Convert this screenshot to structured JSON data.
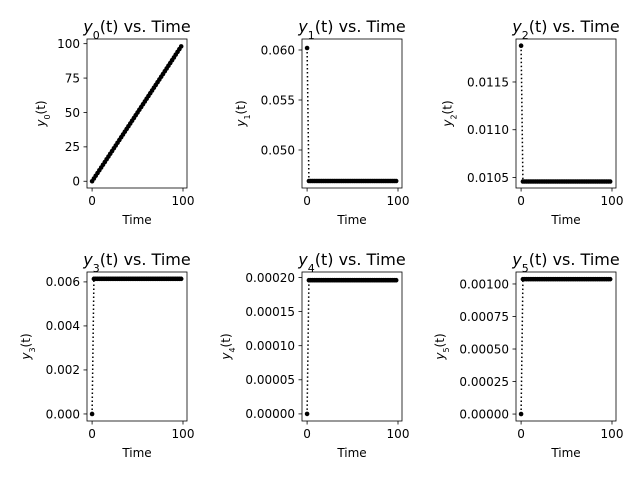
{
  "chart_data": [
    {
      "type": "line",
      "title": {
        "main": "y",
        "sub": "0",
        "rest": "(t) vs. Time"
      },
      "xlabel": "Time",
      "ylabel": {
        "main": "y",
        "sub": "0",
        "rest": "(t)"
      },
      "xlim": [
        -5.6,
        104.4
      ],
      "ylim": [
        -4.9,
        103.4
      ],
      "xticks": [
        0,
        100
      ],
      "xtick_labels": [
        "0",
        "100"
      ],
      "yticks": [
        0,
        25,
        50,
        75,
        100
      ],
      "ytick_labels": [
        "0",
        "25",
        "50",
        "75",
        "100"
      ],
      "x": [
        0,
        2,
        4,
        6,
        8,
        10,
        12,
        14,
        16,
        18,
        20,
        22,
        24,
        26,
        28,
        30,
        32,
        34,
        36,
        38,
        40,
        42,
        44,
        46,
        48,
        50,
        52,
        54,
        56,
        58,
        60,
        62,
        64,
        66,
        68,
        70,
        72,
        74,
        76,
        78,
        80,
        82,
        84,
        86,
        88,
        90,
        92,
        94,
        96,
        98
      ],
      "y": [
        0,
        2,
        4,
        6,
        8,
        10,
        12,
        14,
        16,
        18,
        20,
        22,
        24,
        26,
        28,
        30,
        32,
        34,
        36,
        38,
        40,
        42,
        44,
        46,
        48,
        50,
        52,
        54,
        56,
        58,
        60,
        62,
        64,
        66,
        68,
        70,
        72,
        74,
        76,
        78,
        80,
        82,
        84,
        86,
        88,
        90,
        92,
        94,
        96,
        98
      ],
      "grid": false,
      "marker": "dot",
      "line_style": "dotted",
      "color": "#000000"
    },
    {
      "type": "line",
      "title": {
        "main": "y",
        "sub": "1",
        "rest": "(t) vs. Time"
      },
      "xlabel": "Time",
      "ylabel": {
        "main": "y",
        "sub": "1",
        "rest": "(t)"
      },
      "xlim": [
        -5.6,
        104.4
      ],
      "ylim": [
        0.0462,
        0.0611
      ],
      "xticks": [
        0,
        100
      ],
      "xtick_labels": [
        "0",
        "100"
      ],
      "yticks": [
        0.05,
        0.055,
        0.06
      ],
      "ytick_labels": [
        "0.050",
        "0.055",
        "0.060"
      ],
      "x": [
        0,
        2,
        4,
        6,
        8,
        10,
        12,
        14,
        16,
        18,
        20,
        22,
        24,
        26,
        28,
        30,
        32,
        34,
        36,
        38,
        40,
        42,
        44,
        46,
        48,
        50,
        52,
        54,
        56,
        58,
        60,
        62,
        64,
        66,
        68,
        70,
        72,
        74,
        76,
        78,
        80,
        82,
        84,
        86,
        88,
        90,
        92,
        94,
        96,
        98
      ],
      "y": [
        0.0602,
        0.0469,
        0.0469,
        0.0469,
        0.0469,
        0.0469,
        0.0469,
        0.0469,
        0.0469,
        0.0469,
        0.0469,
        0.0469,
        0.0469,
        0.0469,
        0.0469,
        0.0469,
        0.0469,
        0.0469,
        0.0469,
        0.0469,
        0.0469,
        0.0469,
        0.0469,
        0.0469,
        0.0469,
        0.0469,
        0.0469,
        0.0469,
        0.0469,
        0.0469,
        0.0469,
        0.0469,
        0.0469,
        0.0469,
        0.0469,
        0.0469,
        0.0469,
        0.0469,
        0.0469,
        0.0469,
        0.0469,
        0.0469,
        0.0469,
        0.0469,
        0.0469,
        0.0469,
        0.0469,
        0.0469,
        0.0469,
        0.0469
      ],
      "grid": false,
      "marker": "dot",
      "line_style": "dotted",
      "color": "#000000"
    },
    {
      "type": "line",
      "title": {
        "main": "y",
        "sub": "2",
        "rest": "(t) vs. Time"
      },
      "xlabel": "Time",
      "ylabel": {
        "main": "y",
        "sub": "2",
        "rest": "(t)"
      },
      "xlim": [
        -5.6,
        104.4
      ],
      "ylim": [
        0.01039,
        0.01195
      ],
      "xticks": [
        0,
        100
      ],
      "xtick_labels": [
        "0",
        "100"
      ],
      "yticks": [
        0.0105,
        0.011,
        0.0115
      ],
      "ytick_labels": [
        "0.0105",
        "0.0110",
        "0.0115"
      ],
      "x": [
        0,
        2,
        4,
        6,
        8,
        10,
        12,
        14,
        16,
        18,
        20,
        22,
        24,
        26,
        28,
        30,
        32,
        34,
        36,
        38,
        40,
        42,
        44,
        46,
        48,
        50,
        52,
        54,
        56,
        58,
        60,
        62,
        64,
        66,
        68,
        70,
        72,
        74,
        76,
        78,
        80,
        82,
        84,
        86,
        88,
        90,
        92,
        94,
        96,
        98
      ],
      "y": [
        0.01188,
        0.010458,
        0.010458,
        0.010458,
        0.010458,
        0.010458,
        0.010458,
        0.010458,
        0.010458,
        0.010458,
        0.010458,
        0.010458,
        0.010458,
        0.010458,
        0.010458,
        0.010458,
        0.010458,
        0.010458,
        0.010458,
        0.010458,
        0.010458,
        0.010458,
        0.010458,
        0.010458,
        0.010458,
        0.010458,
        0.010458,
        0.010458,
        0.010458,
        0.010458,
        0.010458,
        0.010458,
        0.010458,
        0.010458,
        0.010458,
        0.010458,
        0.010458,
        0.010458,
        0.010458,
        0.010458,
        0.010458,
        0.010458,
        0.010458,
        0.010458,
        0.010458,
        0.010458,
        0.010458,
        0.010458,
        0.010458,
        0.010458
      ],
      "grid": false,
      "marker": "dot",
      "line_style": "dotted",
      "color": "#000000"
    },
    {
      "type": "line",
      "title": {
        "main": "y",
        "sub": "3",
        "rest": "(t) vs. Time"
      },
      "xlabel": "Time",
      "ylabel": {
        "main": "y",
        "sub": "3",
        "rest": "(t)"
      },
      "xlim": [
        -5.6,
        104.4
      ],
      "ylim": [
        -0.00032,
        0.00645
      ],
      "xticks": [
        0,
        100
      ],
      "xtick_labels": [
        "0",
        "100"
      ],
      "yticks": [
        0,
        0.002,
        0.004,
        0.006
      ],
      "ytick_labels": [
        "0.000",
        "0.002",
        "0.004",
        "0.006"
      ],
      "x": [
        0,
        2,
        4,
        6,
        8,
        10,
        12,
        14,
        16,
        18,
        20,
        22,
        24,
        26,
        28,
        30,
        32,
        34,
        36,
        38,
        40,
        42,
        44,
        46,
        48,
        50,
        52,
        54,
        56,
        58,
        60,
        62,
        64,
        66,
        68,
        70,
        72,
        74,
        76,
        78,
        80,
        82,
        84,
        86,
        88,
        90,
        92,
        94,
        96,
        98
      ],
      "y": [
        0,
        0.00614,
        0.00614,
        0.00614,
        0.00614,
        0.00614,
        0.00614,
        0.00614,
        0.00614,
        0.00614,
        0.00614,
        0.00614,
        0.00614,
        0.00614,
        0.00614,
        0.00614,
        0.00614,
        0.00614,
        0.00614,
        0.00614,
        0.00614,
        0.00614,
        0.00614,
        0.00614,
        0.00614,
        0.00614,
        0.00614,
        0.00614,
        0.00614,
        0.00614,
        0.00614,
        0.00614,
        0.00614,
        0.00614,
        0.00614,
        0.00614,
        0.00614,
        0.00614,
        0.00614,
        0.00614,
        0.00614,
        0.00614,
        0.00614,
        0.00614,
        0.00614,
        0.00614,
        0.00614,
        0.00614,
        0.00614,
        0.00614
      ],
      "grid": false,
      "marker": "dot",
      "line_style": "dotted",
      "color": "#000000"
    },
    {
      "type": "line",
      "title": {
        "main": "y",
        "sub": "4",
        "rest": "(t) vs. Time"
      },
      "xlabel": "Time",
      "ylabel": {
        "main": "y",
        "sub": "4",
        "rest": "(t)"
      },
      "xlim": [
        -5.6,
        104.4
      ],
      "ylim": [
        -1.04e-05,
        0.000208
      ],
      "xticks": [
        0,
        100
      ],
      "xtick_labels": [
        "0",
        "100"
      ],
      "yticks": [
        0,
        5e-05,
        0.0001,
        0.00015,
        0.0002
      ],
      "ytick_labels": [
        "0.00000",
        "0.00005",
        "0.00010",
        "0.00015",
        "0.00020"
      ],
      "x": [
        0,
        2,
        4,
        6,
        8,
        10,
        12,
        14,
        16,
        18,
        20,
        22,
        24,
        26,
        28,
        30,
        32,
        34,
        36,
        38,
        40,
        42,
        44,
        46,
        48,
        50,
        52,
        54,
        56,
        58,
        60,
        62,
        64,
        66,
        68,
        70,
        72,
        74,
        76,
        78,
        80,
        82,
        84,
        86,
        88,
        90,
        92,
        94,
        96,
        98
      ],
      "y": [
        0,
        0.000196,
        0.000196,
        0.000196,
        0.000196,
        0.000196,
        0.000196,
        0.000196,
        0.000196,
        0.000196,
        0.000196,
        0.000196,
        0.000196,
        0.000196,
        0.000196,
        0.000196,
        0.000196,
        0.000196,
        0.000196,
        0.000196,
        0.000196,
        0.000196,
        0.000196,
        0.000196,
        0.000196,
        0.000196,
        0.000196,
        0.000196,
        0.000196,
        0.000196,
        0.000196,
        0.000196,
        0.000196,
        0.000196,
        0.000196,
        0.000196,
        0.000196,
        0.000196,
        0.000196,
        0.000196,
        0.000196,
        0.000196,
        0.000196,
        0.000196,
        0.000196,
        0.000196,
        0.000196,
        0.000196,
        0.000196,
        0.000196
      ],
      "grid": false,
      "marker": "dot",
      "line_style": "dotted",
      "color": "#000000"
    },
    {
      "type": "line",
      "title": {
        "main": "y",
        "sub": "5",
        "rest": "(t) vs. Time"
      },
      "xlabel": "Time",
      "ylabel": {
        "main": "y",
        "sub": "5",
        "rest": "(t)"
      },
      "xlim": [
        -5.6,
        104.4
      ],
      "ylim": [
        -5.34e-05,
        0.001092
      ],
      "xticks": [
        0,
        100
      ],
      "xtick_labels": [
        "0",
        "100"
      ],
      "yticks": [
        0,
        0.00025,
        0.0005,
        0.00075,
        0.001
      ],
      "ytick_labels": [
        "0.00000",
        "0.00025",
        "0.00050",
        "0.00075",
        "0.00100"
      ],
      "x": [
        0,
        2,
        4,
        6,
        8,
        10,
        12,
        14,
        16,
        18,
        20,
        22,
        24,
        26,
        28,
        30,
        32,
        34,
        36,
        38,
        40,
        42,
        44,
        46,
        48,
        50,
        52,
        54,
        56,
        58,
        60,
        62,
        64,
        66,
        68,
        70,
        72,
        74,
        76,
        78,
        80,
        82,
        84,
        86,
        88,
        90,
        92,
        94,
        96,
        98
      ],
      "y": [
        0,
        0.001037,
        0.001037,
        0.001037,
        0.001037,
        0.001037,
        0.001037,
        0.001037,
        0.001037,
        0.001037,
        0.001037,
        0.001037,
        0.001037,
        0.001037,
        0.001037,
        0.001037,
        0.001037,
        0.001037,
        0.001037,
        0.001037,
        0.001037,
        0.001037,
        0.001037,
        0.001037,
        0.001037,
        0.001037,
        0.001037,
        0.001037,
        0.001037,
        0.001037,
        0.001037,
        0.001037,
        0.001037,
        0.001037,
        0.001037,
        0.001037,
        0.001037,
        0.001037,
        0.001037,
        0.001037,
        0.001037,
        0.001037,
        0.001037,
        0.001037,
        0.001037,
        0.001037,
        0.001037,
        0.001037,
        0.001037,
        0.001037
      ],
      "grid": false,
      "marker": "dot",
      "line_style": "dotted",
      "color": "#000000"
    }
  ]
}
